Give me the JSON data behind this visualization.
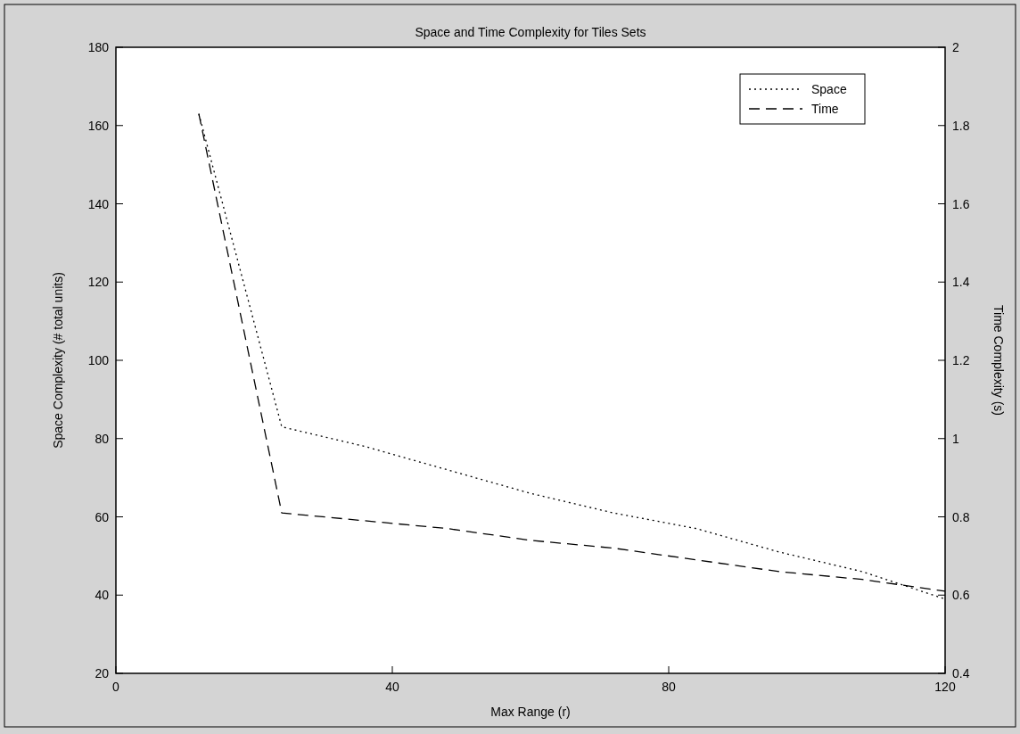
{
  "chart_data": {
    "type": "line",
    "title": "Space and Time Complexity for Tiles Sets",
    "xlabel": "Max Range (r)",
    "ylabel": "Space Complexity (# total units)",
    "y2label": "Time Complexity (s)",
    "x": [
      12,
      24,
      36,
      48,
      60,
      72,
      84,
      96,
      108,
      120
    ],
    "series": [
      {
        "name": "Space",
        "color": "#000000",
        "line_style": "dotted",
        "values": [
          163,
          83,
          78,
          72,
          66,
          61,
          57,
          51,
          46,
          39
        ]
      },
      {
        "name": "Time",
        "color": "#000000",
        "line_style": "dashed",
        "axis": "y2",
        "values": [
          1.83,
          0.81,
          0.79,
          0.77,
          0.74,
          0.72,
          0.69,
          0.66,
          0.64,
          0.61
        ]
      }
    ],
    "xlim": [
      0,
      120
    ],
    "xticks": [
      0,
      40,
      80,
      120
    ],
    "ylim": [
      20,
      180
    ],
    "yticks": [
      20,
      40,
      60,
      80,
      100,
      120,
      140,
      160,
      180
    ],
    "y2lim": [
      0.4,
      2
    ],
    "y2ticks": [
      0.4,
      0.6,
      0.8,
      1,
      1.2,
      1.4,
      1.6,
      1.8,
      2
    ],
    "legend": "top right",
    "grid": false,
    "marker": "none"
  }
}
